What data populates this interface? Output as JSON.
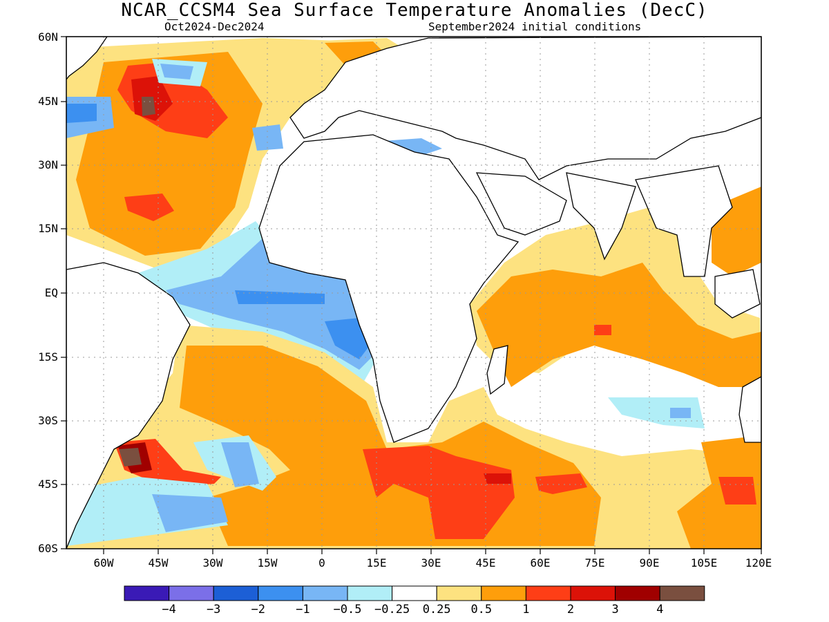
{
  "title": "NCAR_CCSM4 Sea Surface Temperature Anomalies (DecC)",
  "subtitle_left": "Oct2024-Dec2024",
  "subtitle_right": "September2024 initial conditions",
  "lat_labels": [
    "60N",
    "45N",
    "30N",
    "15N",
    "EQ",
    "15S",
    "30S",
    "45S",
    "60S"
  ],
  "lon_labels": [
    "60W",
    "45W",
    "30W",
    "15W",
    "0",
    "15E",
    "30E",
    "45E",
    "60E",
    "75E",
    "90E",
    "105E",
    "120E"
  ],
  "colorbar": {
    "colors": [
      "#3a1ab6",
      "#7b6fe8",
      "#1c5fd6",
      "#3c90f0",
      "#78b6f5",
      "#b1eef7",
      "#ffffff",
      "#fde280",
      "#fe9e0b",
      "#fe3e16",
      "#dc1208",
      "#a00000",
      "#7a4f3f"
    ],
    "labels": [
      "-4",
      "-3",
      "-2",
      "-1",
      "-0.5",
      "-0.25",
      "0.25",
      "0.5",
      "1",
      "2",
      "3",
      "4"
    ]
  }
}
